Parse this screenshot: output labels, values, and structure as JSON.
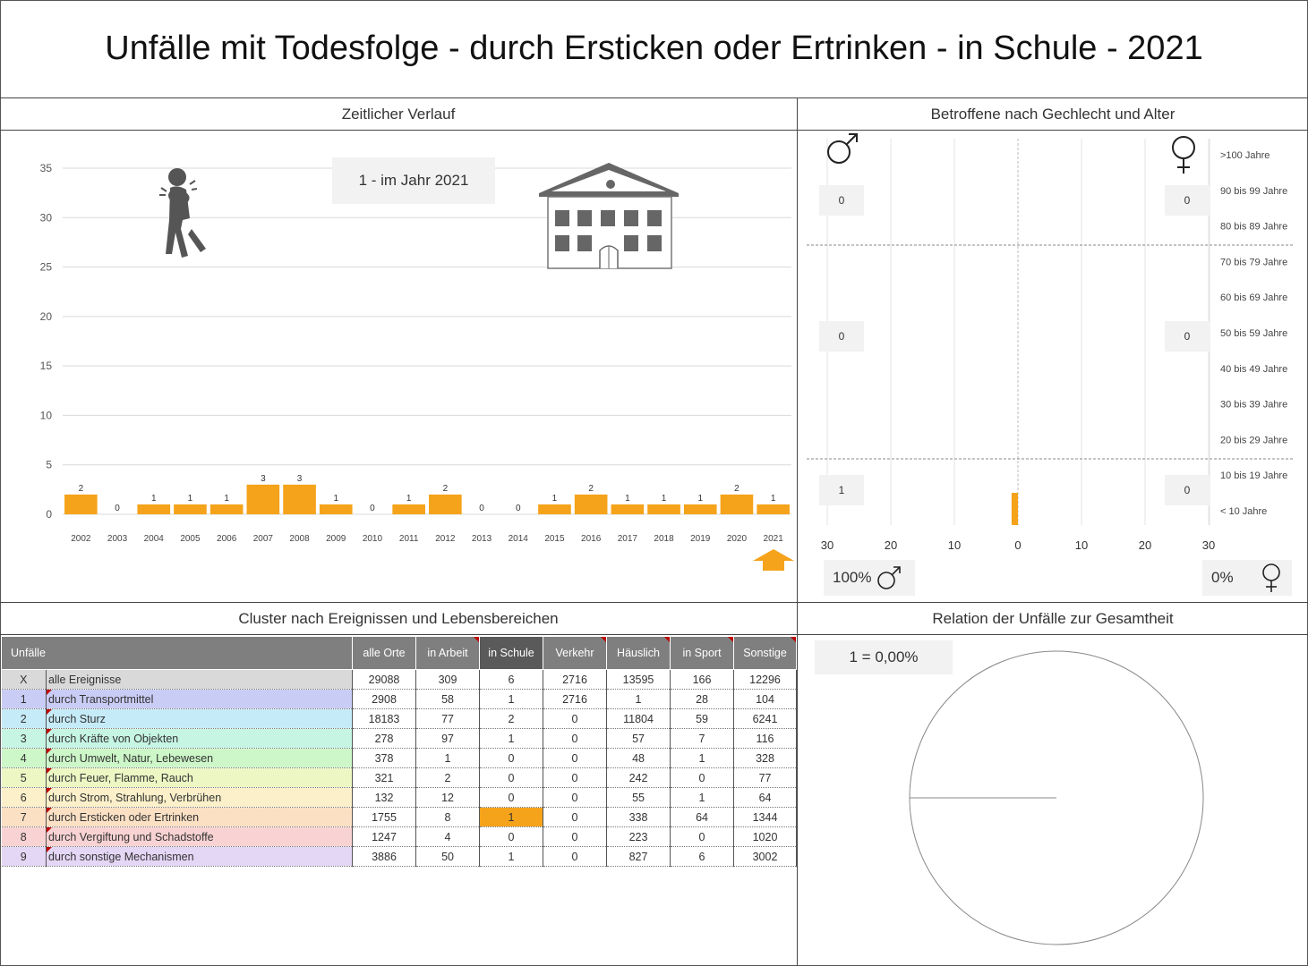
{
  "title": "Unfälle mit Todesfolge - durch Ersticken oder Ertrinken - in Schule - 2021",
  "panels": {
    "timeline": "Zeitlicher Verlauf",
    "gender_age": "Betroffene nach Gechlecht und Alter",
    "cluster": "Cluster nach Ereignissen und Lebensbereichen",
    "relation": "Relation der Unfälle zur Gesamtheit"
  },
  "timeline_badge": "1 - im Jahr 2021",
  "chart_data": [
    {
      "type": "bar",
      "title": "Zeitlicher Verlauf",
      "categories": [
        "2002",
        "2003",
        "2004",
        "2005",
        "2006",
        "2007",
        "2008",
        "2009",
        "2010",
        "2011",
        "2012",
        "2013",
        "2014",
        "2015",
        "2016",
        "2017",
        "2018",
        "2019",
        "2020",
        "2021"
      ],
      "values": [
        2,
        0,
        1,
        1,
        1,
        3,
        3,
        1,
        0,
        1,
        2,
        0,
        0,
        1,
        2,
        1,
        1,
        1,
        2,
        1
      ],
      "ylim": [
        0,
        35
      ],
      "yticks": [
        0,
        5,
        10,
        15,
        20,
        25,
        30,
        35
      ],
      "grid": true,
      "bar_color": "#f5a31a",
      "highlight_category": "2021"
    },
    {
      "type": "bar",
      "title": "Betroffene nach Gechlecht und Alter",
      "orientation": "horizontal-butterfly",
      "categories": [
        ">100 Jahre",
        "90 bis 99 Jahre",
        "80 bis 89 Jahre",
        "70 bis 79 Jahre",
        "60 bis 69 Jahre",
        "50 bis 59 Jahre",
        "40 bis 49 Jahre",
        "30 bis 39 Jahre",
        "20 bis 29 Jahre",
        "10 bis 19 Jahre",
        "< 10 Jahre"
      ],
      "series": [
        {
          "name": "male",
          "values": [
            0,
            0,
            0,
            0,
            0,
            0,
            0,
            0,
            0,
            0,
            1
          ]
        },
        {
          "name": "female",
          "values": [
            0,
            0,
            0,
            0,
            0,
            0,
            0,
            0,
            0,
            0,
            0
          ]
        }
      ],
      "xticks": [
        "30",
        "20",
        "10",
        "0",
        "10",
        "20",
        "30"
      ],
      "xlim": [
        -30,
        30
      ],
      "group_totals": {
        "male": [
          "0",
          "0",
          "1"
        ],
        "female": [
          "0",
          "0",
          "0"
        ]
      },
      "share": {
        "male": "100%",
        "female": "0%"
      }
    },
    {
      "type": "pie",
      "title": "Relation der Unfälle zur Gesamtheit",
      "label": "1 =  0,00%",
      "values": [
        1,
        29088
      ]
    }
  ],
  "table": {
    "headers": [
      "Unfälle",
      "alle Orte",
      "in Arbeit",
      "in Schule",
      "Verkehr",
      "Häuslich",
      "in Sport",
      "Sonstige"
    ],
    "active_column": 3,
    "rows": [
      {
        "idx": "X",
        "name": "alle Ereignisse",
        "color": "#d9d9d9",
        "cells": [
          "29088",
          "309",
          "6",
          "2716",
          "13595",
          "166",
          "12296"
        ]
      },
      {
        "idx": "1",
        "name": "durch Transportmittel",
        "color": "#c9cdf5",
        "cells": [
          "2908",
          "58",
          "1",
          "2716",
          "1",
          "28",
          "104"
        ]
      },
      {
        "idx": "2",
        "name": "durch Sturz",
        "color": "#c6ebf8",
        "cells": [
          "18183",
          "77",
          "2",
          "0",
          "11804",
          "59",
          "6241"
        ]
      },
      {
        "idx": "3",
        "name": "durch Kräfte von Objekten",
        "color": "#c6f5e4",
        "cells": [
          "278",
          "97",
          "1",
          "0",
          "57",
          "7",
          "116"
        ]
      },
      {
        "idx": "4",
        "name": "durch Umwelt, Natur, Lebewesen",
        "color": "#cdf7c8",
        "cells": [
          "378",
          "1",
          "0",
          "0",
          "48",
          "1",
          "328"
        ]
      },
      {
        "idx": "5",
        "name": "durch Feuer, Flamme, Rauch",
        "color": "#ecf7c4",
        "cells": [
          "321",
          "2",
          "0",
          "0",
          "242",
          "0",
          "77"
        ]
      },
      {
        "idx": "6",
        "name": "durch Strom, Strahlung, Verbrühen",
        "color": "#fbf0c9",
        "cells": [
          "132",
          "12",
          "0",
          "0",
          "55",
          "1",
          "64"
        ]
      },
      {
        "idx": "7",
        "name": "durch Ersticken oder Ertrinken",
        "color": "#fbe0c4",
        "cells": [
          "1755",
          "8",
          "1",
          "0",
          "338",
          "64",
          "1344"
        ],
        "highlight": 2
      },
      {
        "idx": "8",
        "name": "durch Vergiftung und Schadstoffe",
        "color": "#f9d3d3",
        "cells": [
          "1247",
          "4",
          "0",
          "0",
          "223",
          "0",
          "1020"
        ]
      },
      {
        "idx": "9",
        "name": "durch sonstige Mechanismen",
        "color": "#e4d6f5",
        "cells": [
          "3886",
          "50",
          "1",
          "0",
          "827",
          "6",
          "3002"
        ]
      }
    ]
  },
  "colors": {
    "bar": "#f5a31a",
    "header": "#7f7f7f",
    "header_active": "#5a5a5a",
    "badge": "#f2f2f2"
  },
  "icons": [
    "choking-person-icon",
    "school-building-icon",
    "male-symbol-icon",
    "female-symbol-icon",
    "up-arrow-icon"
  ]
}
